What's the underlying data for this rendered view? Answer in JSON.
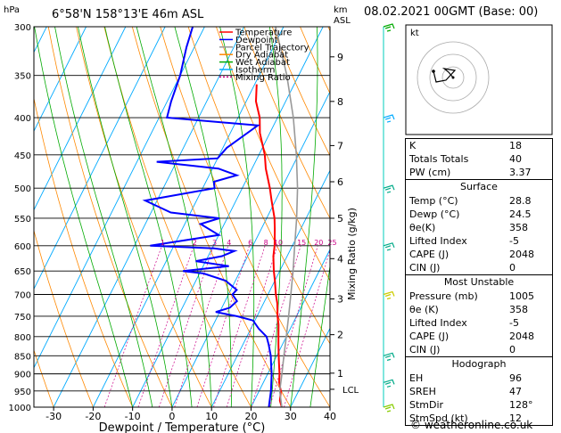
{
  "header": {
    "units": "hPa",
    "location": "6°58'N 158°13'E 46m ASL",
    "km_label": "km",
    "asl_label": "ASL",
    "date": "08.02.2021 00GMT (Base: 00)"
  },
  "legend": [
    {
      "label": "Temperature",
      "color": "#ff0000",
      "dash": ""
    },
    {
      "label": "Dewpoint",
      "color": "#0000ff",
      "dash": ""
    },
    {
      "label": "Parcel Trajectory",
      "color": "#999999",
      "dash": ""
    },
    {
      "label": "Dry Adiabat",
      "color": "#ff8800",
      "dash": ""
    },
    {
      "label": "Wet Adiabat",
      "color": "#00aa00",
      "dash": ""
    },
    {
      "label": "Isotherm",
      "color": "#00aaff",
      "dash": ""
    },
    {
      "label": "Mixing Ratio",
      "color": "#cc0088",
      "dash": "2,2"
    }
  ],
  "chart_data": {
    "type": "line",
    "xlabel": "Dewpoint / Temperature (°C)",
    "ylabel": "Mixing Ratio (g/kg)",
    "xlim": [
      -35,
      40
    ],
    "pressure_range": [
      300,
      1000
    ],
    "x_ticks": [
      "-30",
      "-20",
      "-10",
      "0",
      "10",
      "20",
      "30",
      "40"
    ],
    "pressure_ticks": [
      "300",
      "350",
      "400",
      "450",
      "500",
      "550",
      "600",
      "650",
      "700",
      "750",
      "800",
      "850",
      "900",
      "950",
      "1000"
    ],
    "km_ticks": [
      {
        "label": "9",
        "p": 330
      },
      {
        "label": "8",
        "p": 380
      },
      {
        "label": "7",
        "p": 437
      },
      {
        "label": "6",
        "p": 490
      },
      {
        "label": "5",
        "p": 550
      },
      {
        "label": "4",
        "p": 625
      },
      {
        "label": "3",
        "p": 710
      },
      {
        "label": "2",
        "p": 795
      },
      {
        "label": "1",
        "p": 898
      }
    ],
    "lcl_label": "LCL",
    "lcl_pressure": 945,
    "mixing_ratio_labels": [
      "1",
      "2",
      "3",
      "4",
      "6",
      "8",
      "10",
      "15",
      "20",
      "25"
    ],
    "series": [
      {
        "name": "Temperature",
        "color": "#ff0000",
        "points": [
          [
            1000,
            27.8
          ],
          [
            980,
            26.5
          ],
          [
            950,
            25.5
          ],
          [
            925,
            24.0
          ],
          [
            900,
            23.0
          ],
          [
            870,
            21.5
          ],
          [
            850,
            20.5
          ],
          [
            820,
            19.0
          ],
          [
            800,
            18.0
          ],
          [
            770,
            16.5
          ],
          [
            750,
            15.2
          ],
          [
            720,
            13.5
          ],
          [
            700,
            12.0
          ],
          [
            670,
            10.0
          ],
          [
            650,
            8.5
          ],
          [
            620,
            6.5
          ],
          [
            600,
            5.5
          ],
          [
            570,
            3.5
          ],
          [
            550,
            2.0
          ],
          [
            520,
            -1.0
          ],
          [
            500,
            -3.0
          ],
          [
            470,
            -6.5
          ],
          [
            450,
            -8.5
          ],
          [
            420,
            -12.5
          ],
          [
            400,
            -14.5
          ],
          [
            380,
            -17.5
          ],
          [
            360,
            -19.5
          ]
        ]
      },
      {
        "name": "Dewpoint",
        "color": "#0000ff",
        "points": [
          [
            1000,
            24.5
          ],
          [
            950,
            23.0
          ],
          [
            900,
            21.0
          ],
          [
            870,
            19.5
          ],
          [
            850,
            18.5
          ],
          [
            820,
            16.5
          ],
          [
            800,
            15.0
          ],
          [
            780,
            12.0
          ],
          [
            760,
            9.5
          ],
          [
            750,
            5.0
          ],
          [
            740,
            -1.0
          ],
          [
            730,
            2.0
          ],
          [
            715,
            3.0
          ],
          [
            700,
            1.0
          ],
          [
            690,
            1.5
          ],
          [
            670,
            -2.5
          ],
          [
            655,
            -9.0
          ],
          [
            650,
            -14.5
          ],
          [
            640,
            -3.5
          ],
          [
            630,
            -12.5
          ],
          [
            620,
            -6.5
          ],
          [
            610,
            -4.0
          ],
          [
            605,
            -9.5
          ],
          [
            600,
            -26.0
          ],
          [
            580,
            -10.0
          ],
          [
            560,
            -16.0
          ],
          [
            550,
            -12.0
          ],
          [
            540,
            -25.0
          ],
          [
            520,
            -33.0
          ],
          [
            500,
            -17.0
          ],
          [
            490,
            -18.0
          ],
          [
            480,
            -13.0
          ],
          [
            470,
            -18.5
          ],
          [
            460,
            -35.0
          ],
          [
            455,
            -20.0
          ],
          [
            440,
            -19.0
          ],
          [
            410,
            -14.0
          ],
          [
            400,
            -38.0
          ],
          [
            380,
            -39.0
          ],
          [
            350,
            -40.0
          ],
          [
            320,
            -42.0
          ],
          [
            300,
            -43.0
          ]
        ]
      },
      {
        "name": "Parcel Trajectory",
        "color": "#999999",
        "points": [
          [
            1000,
            27.8
          ],
          [
            950,
            25.2
          ],
          [
            900,
            23.6
          ],
          [
            850,
            21.8
          ],
          [
            800,
            20.0
          ],
          [
            750,
            18.0
          ],
          [
            700,
            15.8
          ],
          [
            650,
            13.4
          ],
          [
            600,
            10.6
          ],
          [
            550,
            7.6
          ],
          [
            500,
            4.0
          ],
          [
            450,
            -0.5
          ],
          [
            400,
            -6.0
          ],
          [
            350,
            -13.0
          ],
          [
            300,
            -22.0
          ]
        ]
      }
    ],
    "indices": {
      "K": "18",
      "Totals Totals": "40",
      "PW (cm)": "3.37"
    },
    "surface": {
      "Temp (°C)": "28.8",
      "Dewp (°C)": "24.5",
      "θe(K)": "358",
      "Lifted Index": "-5",
      "CAPE (J)": "2048",
      "CIN (J)": "0"
    },
    "most_unstable": {
      "Pressure (mb)": "1005",
      "θe (K)": "358",
      "Lifted Index": "-5",
      "CAPE (J)": "2048",
      "CIN (J)": "0"
    },
    "hodograph": {
      "EH": "96",
      "SREH": "47",
      "StmDir": "128°",
      "StmSpd (kt)": "12"
    }
  },
  "panel": {
    "surface_title": "Surface",
    "most_unstable_title": "Most Unstable",
    "hodograph_title": "Hodograph",
    "hodo_unit": "kt"
  },
  "footer": "© weatheronline.co.uk"
}
